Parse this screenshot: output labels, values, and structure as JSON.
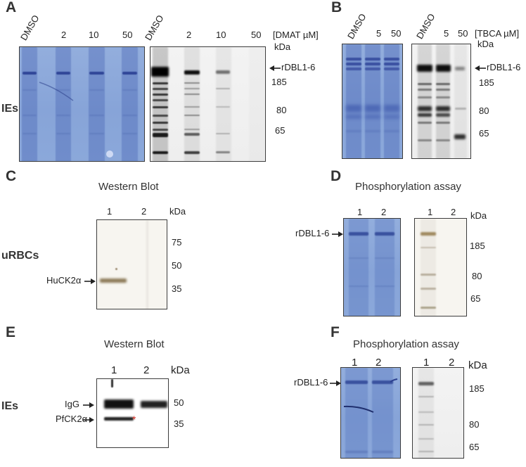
{
  "panels": {
    "a": {
      "letter": "A",
      "row_label": "IEs",
      "lanes_coomassie": [
        "DMSO",
        "2",
        "10",
        "50"
      ],
      "lanes_autorad": [
        "DMSO",
        "2",
        "10",
        "50"
      ],
      "unit": "[DMAT µM]",
      "kda": "kDa",
      "band_label": "rDBL1-6",
      "markers": [
        "185",
        "80",
        "65"
      ]
    },
    "b": {
      "letter": "B",
      "lanes_coomassie": [
        "DMSO",
        "5",
        "50"
      ],
      "lanes_autorad": [
        "DMSO",
        "5",
        "50"
      ],
      "unit": "[TBCA µM]",
      "kda": "kDa",
      "band_label": "rDBL1-6",
      "markers": [
        "185",
        "80",
        "65"
      ]
    },
    "c": {
      "letter": "C",
      "title": "Western Blot",
      "row_label": "uRBCs",
      "lanes": [
        "1",
        "2"
      ],
      "kda": "kDa",
      "band_label": "HuCK2α",
      "markers": [
        "75",
        "50",
        "35"
      ]
    },
    "d": {
      "letter": "D",
      "title": "Phosphorylation assay",
      "lanes_coomassie": [
        "1",
        "2"
      ],
      "lanes_autorad": [
        "1",
        "2"
      ],
      "kda": "kDa",
      "band_label": "rDBL1-6",
      "markers": [
        "185",
        "80",
        "65"
      ]
    },
    "e": {
      "letter": "E",
      "title": "Western Blot",
      "row_label": "IEs",
      "lanes": [
        "1",
        "2"
      ],
      "kda": "kDa",
      "band_labels": [
        "IgG",
        "PfCK2α"
      ],
      "markers": [
        "50",
        "35"
      ],
      "asterisk": "*"
    },
    "f": {
      "letter": "F",
      "title": "Phosphorylation assay",
      "lanes_coomassie": [
        "1",
        "2"
      ],
      "lanes_autorad": [
        "1",
        "2"
      ],
      "kda": "kDa",
      "band_label": "rDBL1-6",
      "markers": [
        "185",
        "80",
        "65"
      ]
    }
  },
  "colors": {
    "coomassie_stain": "#8aa7da",
    "coomassie_band": "#2b3f8e",
    "asterisk": "#d9352b"
  }
}
